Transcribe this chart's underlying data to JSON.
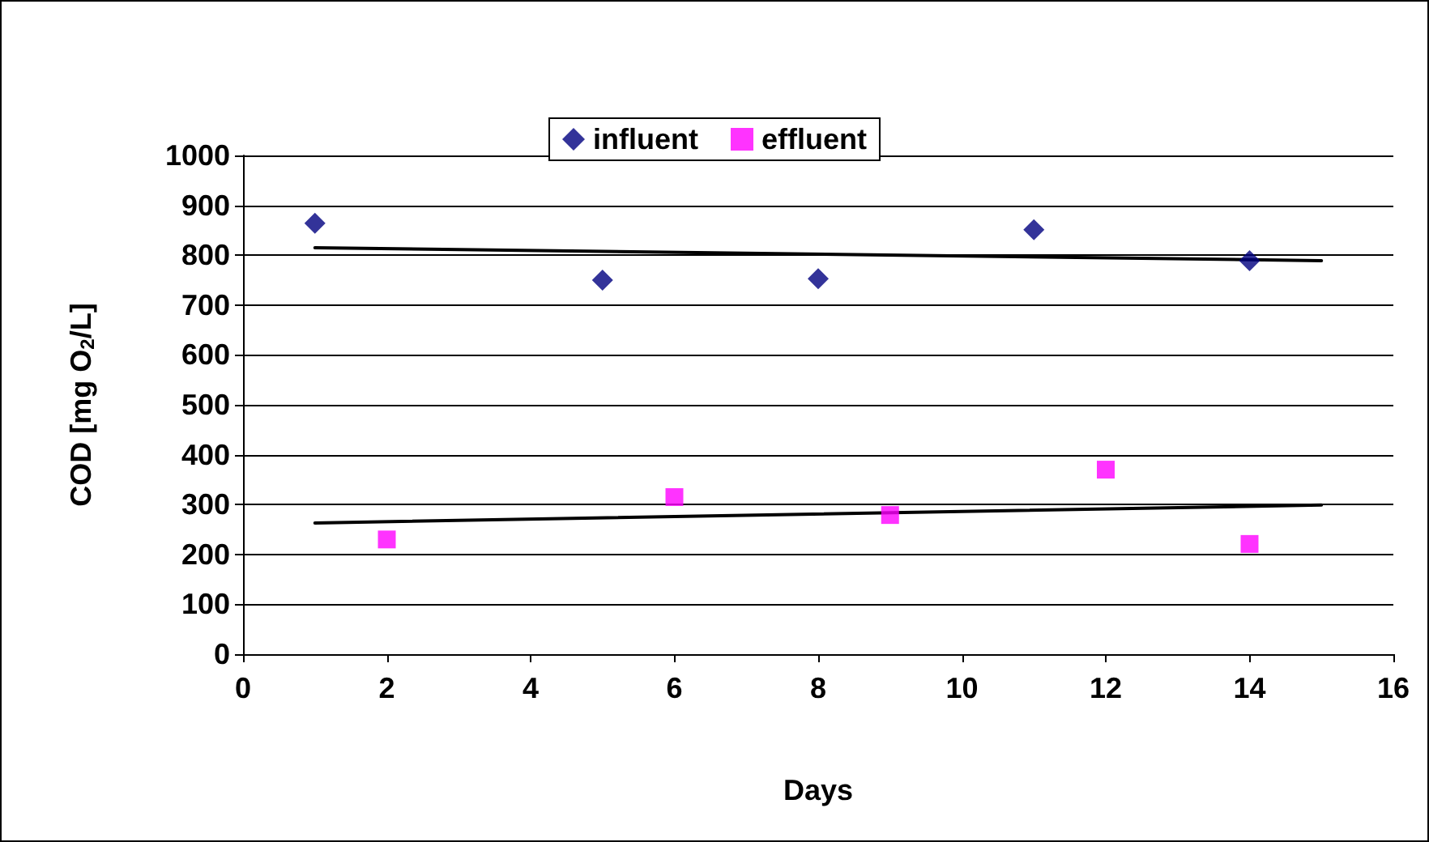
{
  "chart_data": {
    "type": "scatter",
    "xlabel": "Days",
    "ylabel": "COD [mg O$_{2}$/L]",
    "xlim": [
      0,
      16
    ],
    "xticks": [
      0,
      2,
      4,
      6,
      8,
      10,
      12,
      14,
      16
    ],
    "ylim": [
      0,
      1000
    ],
    "yticks": [
      0,
      100,
      200,
      300,
      400,
      500,
      600,
      700,
      800,
      900,
      1000
    ],
    "grid": "y",
    "legend": "top",
    "series": [
      {
        "name": "influent",
        "color": "#000080",
        "marker": "diamond",
        "x": [
          1,
          5,
          8,
          11,
          14
        ],
        "values": [
          864,
          750,
          753,
          851,
          789
        ]
      },
      {
        "name": "effluent",
        "color": "#ff00ff",
        "marker": "square",
        "x": [
          2,
          6,
          9,
          12,
          14
        ],
        "values": [
          230,
          315,
          279,
          370,
          221
        ]
      },
      {
        "type": "line",
        "color": "#000000",
        "marker": "none",
        "x": [
          1,
          15
        ],
        "values": [
          815,
          789
        ]
      },
      {
        "type": "line",
        "color": "#000000",
        "marker": "none",
        "x": [
          1,
          15
        ],
        "values": [
          263,
          299
        ]
      }
    ]
  }
}
